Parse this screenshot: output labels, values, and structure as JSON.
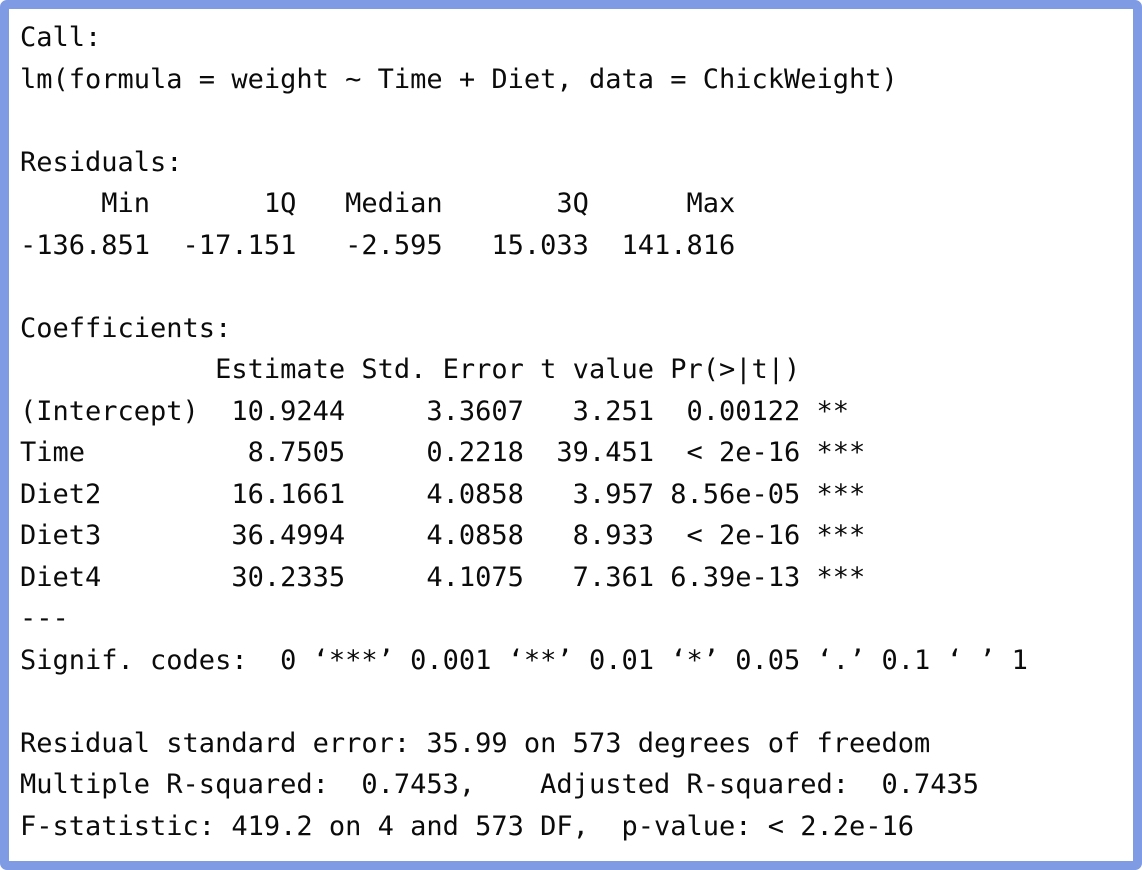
{
  "colors": {
    "frame_border": "#7E9BE3",
    "background": "#FFFFFF",
    "text": "#0B0B0B"
  },
  "console": {
    "language": "R",
    "section_order": [
      "call",
      "residuals",
      "coefficients",
      "fit_statistics"
    ],
    "sections": {
      "call": {
        "lines": [
          "Call:",
          "lm(formula = weight ~ Time + Diet, data = ChickWeight)"
        ]
      },
      "residuals": {
        "lines": [
          "Residuals:",
          "     Min       1Q   Median       3Q      Max ",
          "-136.851  -17.151   -2.595   15.033  141.816 "
        ]
      },
      "coefficients": {
        "lines": [
          "Coefficients:",
          "            Estimate Std. Error t value Pr(>|t|)    ",
          "(Intercept)  10.9244     3.3607   3.251  0.00122 ** ",
          "Time          8.7505     0.2218  39.451  < 2e-16 ***",
          "Diet2        16.1661     4.0858   3.957 8.56e-05 ***",
          "Diet3        36.4994     4.0858   8.933  < 2e-16 ***",
          "Diet4        30.2335     4.1075   7.361 6.39e-13 ***",
          "---",
          "Signif. codes:  0 ‘***’ 0.001 ‘**’ 0.01 ‘*’ 0.05 ‘.’ 0.1 ‘ ’ 1"
        ]
      },
      "fit_statistics": {
        "lines": [
          "Residual standard error: 35.99 on 573 degrees of freedom",
          "Multiple R-squared:  0.7453,    Adjusted R-squared:  0.7435 ",
          "F-statistic: 419.2 on 4 and 573 DF,  p-value: < 2.2e-16"
        ]
      }
    }
  },
  "model": {
    "call": "lm(formula = weight ~ Time + Diet, data = ChickWeight)",
    "residuals": {
      "min": -136.851,
      "q1": -17.151,
      "median": -2.595,
      "q3": 15.033,
      "max": 141.816
    },
    "coefficients_table": {
      "columns": [
        "Estimate",
        "Std. Error",
        "t value",
        "Pr(>|t|)"
      ],
      "rows": [
        {
          "term": "(Intercept)",
          "estimate": 10.9244,
          "std_error": 3.3607,
          "t_value": 3.251,
          "p_value": "0.00122",
          "signif": "**"
        },
        {
          "term": "Time",
          "estimate": 8.7505,
          "std_error": 0.2218,
          "t_value": 39.451,
          "p_value": "< 2e-16",
          "signif": "***"
        },
        {
          "term": "Diet2",
          "estimate": 16.1661,
          "std_error": 4.0858,
          "t_value": 3.957,
          "p_value": "8.56e-05",
          "signif": "***"
        },
        {
          "term": "Diet3",
          "estimate": 36.4994,
          "std_error": 4.0858,
          "t_value": 8.933,
          "p_value": "< 2e-16",
          "signif": "***"
        },
        {
          "term": "Diet4",
          "estimate": 30.2335,
          "std_error": 4.1075,
          "t_value": 7.361,
          "p_value": "6.39e-13",
          "signif": "***"
        }
      ]
    },
    "signif_codes": "0 ‘***’ 0.001 ‘**’ 0.01 ‘*’ 0.05 ‘.’ 0.1 ‘ ’ 1",
    "residual_standard_error": "35.99 on 573 degrees of freedom",
    "multiple_r_squared": 0.7453,
    "adjusted_r_squared": 0.7435,
    "f_statistic": "419.2 on 4 and 573 DF",
    "p_value": "< 2.2e-16"
  }
}
